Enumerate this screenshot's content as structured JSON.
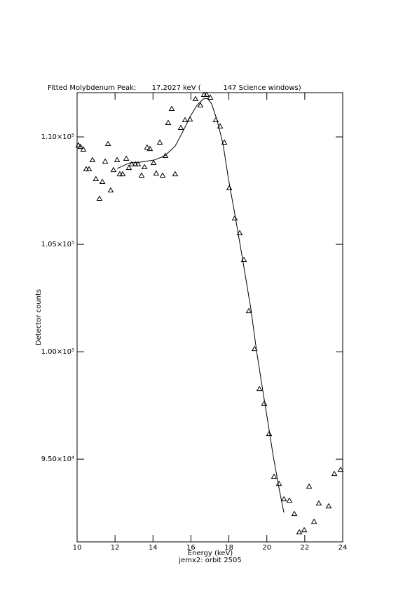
{
  "chart_data": {
    "type": "scatter",
    "title": "Fitted Molybdenum Peak:       17.2027 keV (          147 Science windows)",
    "xlabel": "Energy (keV)",
    "subtitle": "jemx2: orbit 2505",
    "ylabel": "Detector counts",
    "xlim": [
      10,
      24
    ],
    "xticks": [
      10,
      12,
      14,
      16,
      18,
      20,
      22,
      24
    ],
    "ylim": [
      91150,
      112060
    ],
    "yticks": [
      {
        "value": 95000,
        "label": "9.50×10⁴"
      },
      {
        "value": 100000,
        "label": "1.00×10⁵"
      },
      {
        "value": 105000,
        "label": "1.05×10⁵"
      },
      {
        "value": 110000,
        "label": "1.10×10⁵"
      }
    ],
    "series": [
      {
        "mark": "triangle",
        "color": "#000000",
        "x": [
          10.07,
          10.18,
          10.33,
          10.48,
          10.63,
          10.81,
          10.99,
          11.18,
          11.33,
          11.48,
          11.63,
          11.77,
          11.92,
          12.11,
          12.25,
          12.4,
          12.59,
          12.73,
          12.88,
          13.07,
          13.21,
          13.4,
          13.55,
          13.69,
          13.84,
          14.03,
          14.17,
          14.36,
          14.51,
          14.65,
          14.8,
          14.99,
          15.17,
          15.47,
          15.69,
          15.95,
          16.24,
          16.5,
          16.69,
          16.83,
          17.02,
          17.31,
          17.54,
          17.76,
          18.02,
          18.31,
          18.57,
          18.79,
          19.05,
          19.35,
          19.61,
          19.86,
          20.12,
          20.38,
          20.64,
          20.9,
          21.19,
          21.45,
          21.71,
          21.97,
          22.23,
          22.49,
          22.74,
          23.26,
          23.56,
          23.89
        ],
        "values": [
          109608,
          109542,
          109412,
          108497,
          108497,
          108922,
          108040,
          107125,
          107909,
          108856,
          109673,
          107516,
          108464,
          108922,
          108268,
          108268,
          108987,
          108562,
          108726,
          108726,
          108726,
          108203,
          108595,
          109510,
          109444,
          108791,
          108301,
          109739,
          108203,
          109118,
          110654,
          111307,
          108268,
          110425,
          110784,
          110817,
          111765,
          111471,
          111961,
          111961,
          111830,
          110784,
          110490,
          109739,
          107615,
          106209,
          105523,
          104281,
          101896,
          100131,
          98268,
          97582,
          96176,
          94183,
          93856,
          93137,
          93072,
          92451,
          91601,
          91699,
          93725,
          92091,
          92941,
          92810,
          94314,
          94510
        ]
      },
      {
        "mark": "line",
        "color": "#000000",
        "x": [
          12.11,
          12.77,
          13.32,
          14.06,
          14.62,
          15.17,
          15.62,
          15.98,
          16.32,
          16.65,
          16.87,
          17.09,
          17.39,
          17.69,
          17.98,
          18.28,
          18.57,
          18.87,
          19.16,
          19.46,
          19.75,
          20.05,
          20.34,
          20.64,
          20.9
        ],
        "values": [
          108530,
          108791,
          108824,
          108922,
          109118,
          109575,
          110327,
          110980,
          111471,
          111765,
          111797,
          111536,
          110752,
          109673,
          108039,
          106569,
          105098,
          103529,
          101993,
          100033,
          98399,
          96765,
          95131,
          93660,
          92516
        ]
      }
    ]
  }
}
